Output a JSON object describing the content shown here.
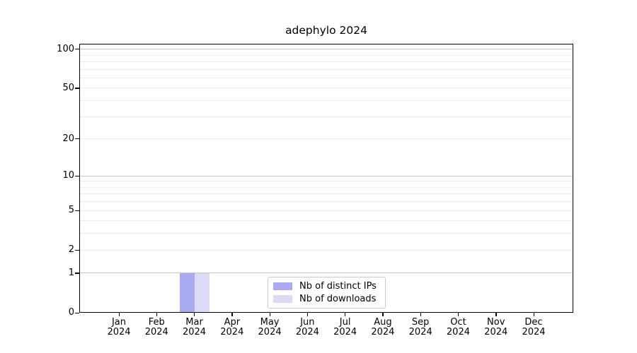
{
  "title": "adephylo 2024",
  "chart_data": {
    "type": "bar",
    "title": "adephylo 2024",
    "categories": [
      "Jan 2024",
      "Feb 2024",
      "Mar 2024",
      "Apr 2024",
      "May 2024",
      "Jun 2024",
      "Jul 2024",
      "Aug 2024",
      "Sep 2024",
      "Oct 2024",
      "Nov 2024",
      "Dec 2024"
    ],
    "series": [
      {
        "name": "Nb of distinct IPs",
        "color": "#aaaaf2",
        "values": [
          0,
          0,
          1,
          0,
          0,
          0,
          0,
          0,
          0,
          0,
          0,
          0
        ]
      },
      {
        "name": "Nb of downloads",
        "color": "#dbdbf8",
        "values": [
          0,
          0,
          1,
          0,
          0,
          0,
          0,
          0,
          0,
          0,
          0,
          0
        ]
      }
    ],
    "xlabel": "",
    "ylabel": "",
    "y_axis": {
      "scale": "log1p",
      "ticks": [
        100,
        50,
        20,
        10,
        5,
        2,
        1,
        0
      ],
      "major_gridlines": [
        1,
        10,
        100
      ],
      "minor_gridlines": [
        2,
        3,
        4,
        5,
        6,
        7,
        8,
        9,
        20,
        30,
        40,
        50,
        60,
        70,
        80,
        90
      ],
      "ylim": [
        0,
        110
      ]
    },
    "grid": true,
    "legend_position": "inside-bottom-center"
  },
  "legend": {
    "items": [
      {
        "label": "Nb of distinct IPs",
        "color": "#aaaaf2"
      },
      {
        "label": "Nb of downloads",
        "color": "#dbdbf8"
      }
    ]
  },
  "colors": {
    "background": "#ffffff",
    "axis_frame": "#000000",
    "grid_major": "#c4c4c4",
    "grid_minor": "#ededed",
    "legend_border": "#cccccc",
    "text": "#000000",
    "bar_distinct_ips": "#aaaaf2",
    "bar_downloads": "#dbdbf8"
  }
}
